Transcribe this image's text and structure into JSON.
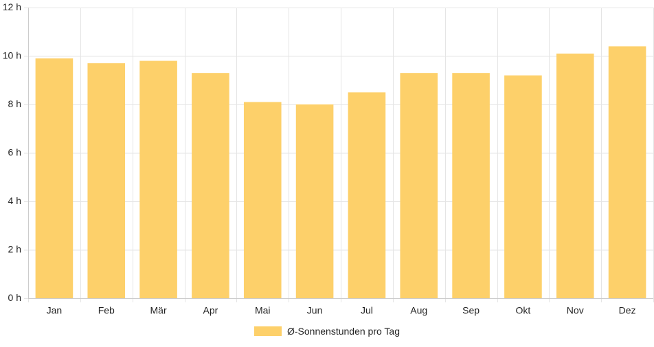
{
  "chart_data": {
    "type": "bar",
    "categories": [
      "Jan",
      "Feb",
      "Mär",
      "Apr",
      "Mai",
      "Jun",
      "Jul",
      "Aug",
      "Sep",
      "Okt",
      "Nov",
      "Dez"
    ],
    "series": [
      {
        "name": "Ø-Sonnenstunden pro Tag",
        "values": [
          9.9,
          9.7,
          9.8,
          9.3,
          8.1,
          8.0,
          8.5,
          9.3,
          9.3,
          9.2,
          10.1,
          10.4
        ]
      }
    ],
    "ylim": [
      0,
      12
    ],
    "yticks": [
      0,
      2,
      4,
      6,
      8,
      10,
      12
    ],
    "y_unit": "h",
    "grid": true,
    "legend_position": "bottom-center",
    "colors": {
      "bar": "#fdd06a",
      "grid": "#e5e5e5",
      "axis": "#cccccc"
    }
  }
}
